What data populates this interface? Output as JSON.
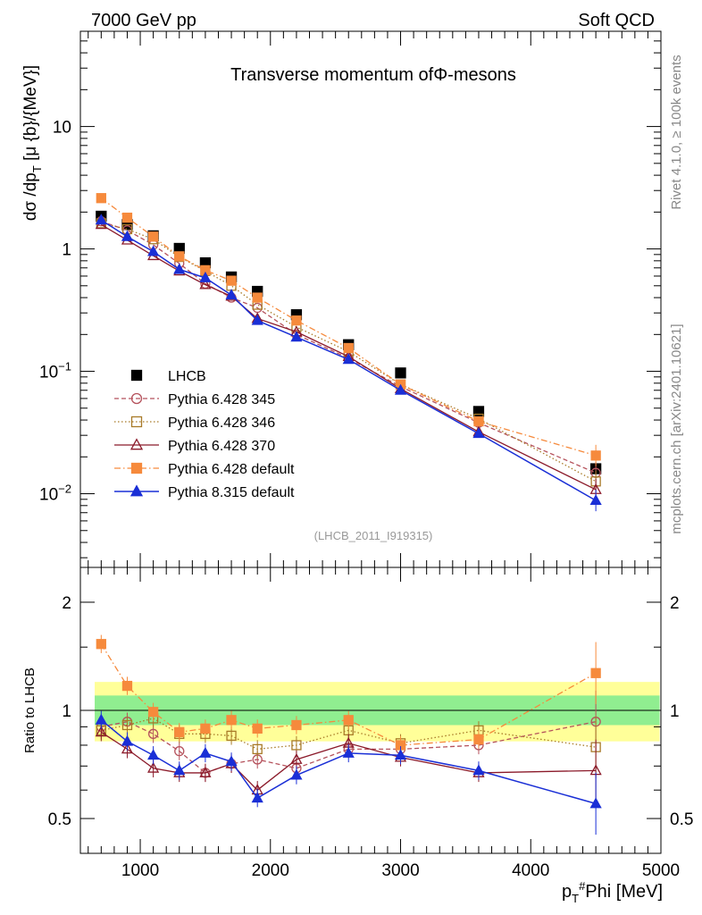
{
  "header": {
    "left": "7000 GeV pp",
    "right": "Soft QCD"
  },
  "side_text": {
    "top": "Rivet 4.1.0, ≥ 100k events",
    "bottom": "mcplots.cern.ch [arXiv:2401.10621]"
  },
  "main_title": "Transverse momentum ofΦ-mesons",
  "analysis_id": "(LHCB_2011_I919315)",
  "y_label_main": "dσ /dp_T [μ {b}/{MeV}]",
  "y_label_ratio": "Ratio to LHCB",
  "x_label": "p_T^#Phi [MeV]",
  "y_ticks_main": [
    "10^{-2}",
    "10^{-1}",
    "1",
    "10"
  ],
  "y_ticks_ratio": [
    "0.5",
    "1",
    "2"
  ],
  "x_ticks": [
    "1000",
    "2000",
    "3000",
    "4000",
    "5000"
  ],
  "chart_data": [
    {
      "type": "scatter",
      "panel": "main",
      "yscale": "log",
      "xlim": [
        540,
        5000
      ],
      "ylim": [
        0.0025,
        60
      ],
      "x": [
        700,
        900,
        1100,
        1300,
        1500,
        1700,
        1900,
        2200,
        2600,
        3000,
        3600,
        4500
      ],
      "series": [
        {
          "name": "LHCB",
          "color": "#000000",
          "marker": "square",
          "values": [
            1.85,
            1.58,
            1.28,
            1.01,
            0.77,
            0.59,
            0.45,
            0.29,
            0.165,
            0.097,
            0.047,
            0.016
          ]
        },
        {
          "name": "Pythia 6.428 345",
          "color": "#b5525c",
          "marker": "circle-open",
          "values": [
            1.68,
            1.42,
            1.08,
            0.76,
            0.52,
            0.4,
            0.33,
            0.2,
            0.128,
            0.075,
            0.038,
            0.0148
          ]
        },
        {
          "name": "Pythia 6.428 346",
          "color": "#a87a28",
          "marker": "square-open",
          "values": [
            1.62,
            1.45,
            1.2,
            0.86,
            0.66,
            0.5,
            0.35,
            0.23,
            0.145,
            0.078,
            0.041,
            0.0126
          ]
        },
        {
          "name": "Pythia 6.428 370",
          "color": "#8b1a2a",
          "marker": "triangle-open",
          "values": [
            1.58,
            1.18,
            0.88,
            0.66,
            0.51,
            0.41,
            0.27,
            0.21,
            0.132,
            0.072,
            0.032,
            0.0108
          ]
        },
        {
          "name": "Pythia 6.428 default",
          "color": "#f68a3c",
          "marker": "square",
          "values": [
            2.6,
            1.8,
            1.26,
            0.87,
            0.67,
            0.55,
            0.4,
            0.26,
            0.155,
            0.078,
            0.039,
            0.0205
          ]
        },
        {
          "name": "Pythia 8.315 default",
          "color": "#1a2fd6",
          "marker": "triangle",
          "values": [
            1.72,
            1.26,
            0.95,
            0.68,
            0.58,
            0.42,
            0.26,
            0.19,
            0.125,
            0.07,
            0.031,
            0.0088
          ]
        }
      ]
    },
    {
      "type": "scatter",
      "panel": "ratio",
      "yscale": "log",
      "xlim": [
        540,
        5000
      ],
      "ylim": [
        0.4,
        2.5
      ],
      "x": [
        700,
        900,
        1100,
        1300,
        1500,
        1700,
        1900,
        2200,
        2600,
        3000,
        3600,
        4500
      ],
      "reference": 1,
      "bands": {
        "inner": {
          "color": "#90ee90",
          "lower": 0.91,
          "upper": 1.1
        },
        "outer": {
          "color": "#ffff99",
          "lower": 0.82,
          "upper": 1.2
        }
      },
      "series": [
        {
          "name": "Pythia 6.428 345",
          "values": [
            0.9,
            0.93,
            0.86,
            0.77,
            0.67,
            0.71,
            0.73,
            0.69,
            0.78,
            0.78,
            0.8,
            0.93
          ]
        },
        {
          "name": "Pythia 6.428 346",
          "values": [
            0.88,
            0.91,
            0.95,
            0.86,
            0.86,
            0.85,
            0.78,
            0.8,
            0.88,
            0.81,
            0.88,
            0.79
          ]
        },
        {
          "name": "Pythia 6.428 370",
          "values": [
            0.87,
            0.78,
            0.69,
            0.67,
            0.67,
            0.71,
            0.6,
            0.73,
            0.81,
            0.74,
            0.67,
            0.68
          ]
        },
        {
          "name": "Pythia 6.428 default",
          "values": [
            1.53,
            1.17,
            0.99,
            0.87,
            0.89,
            0.94,
            0.89,
            0.91,
            0.94,
            0.8,
            0.83,
            1.27
          ]
        },
        {
          "name": "Pythia 8.315 default",
          "values": [
            0.94,
            0.82,
            0.75,
            0.68,
            0.76,
            0.72,
            0.57,
            0.66,
            0.76,
            0.75,
            0.68,
            0.55
          ]
        }
      ]
    }
  ]
}
